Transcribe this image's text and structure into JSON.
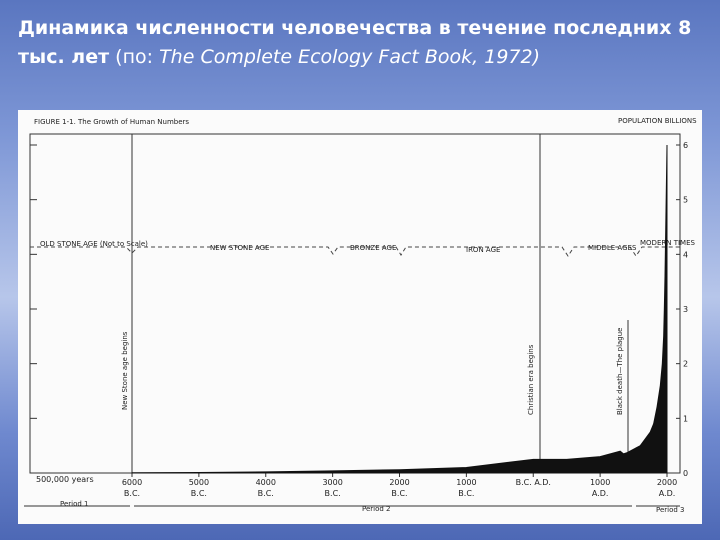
{
  "header": {
    "title": "Динамика численности человечества в течение последних 8 тыс. лет",
    "source_prefix": "(по:",
    "source": "The Complete Ecology Fact Book, 1972)"
  },
  "chart_data": {
    "type": "area",
    "title": "FIGURE 1-1. The Growth of Human Numbers",
    "y_label": "POPULATION BILLIONS",
    "x": [
      -6000,
      -5000,
      -4000,
      -3000,
      -2000,
      -1000,
      0,
      500,
      1000,
      1300,
      1350,
      1400,
      1600,
      1750,
      1800,
      1850,
      1900,
      1930,
      1950,
      1960,
      1970,
      1985,
      2000
    ],
    "series": [
      {
        "name": "Population",
        "color": "#111111",
        "values": [
          0.005,
          0.01,
          0.02,
          0.04,
          0.06,
          0.1,
          0.25,
          0.25,
          0.3,
          0.4,
          0.35,
          0.37,
          0.5,
          0.75,
          0.9,
          1.2,
          1.6,
          2.0,
          2.5,
          3.0,
          3.6,
          4.8,
          6
        ]
      }
    ],
    "xlim": [
      -6000,
      2000
    ],
    "xticks": [
      {
        "value": -6000,
        "label": "6000 B.C."
      },
      {
        "value": -5000,
        "label": "5000 B.C."
      },
      {
        "value": -4000,
        "label": "4000 B.C."
      },
      {
        "value": -3000,
        "label": "3000 B.C."
      },
      {
        "value": -2000,
        "label": "2000 B.C."
      },
      {
        "value": -1000,
        "label": "1000 B.C."
      },
      {
        "value": 0,
        "label": "B.C. A.D."
      },
      {
        "value": 1000,
        "label": "1000 A.D."
      },
      {
        "value": 2000,
        "label": "2000 A.D."
      }
    ],
    "ylim": [
      0,
      6
    ],
    "yticks": [
      0,
      1,
      2,
      3,
      4,
      5,
      6
    ],
    "grid": false,
    "annotations": {
      "old_stone_age": "OLD STONE AGE (Not to Scale)",
      "new_stone_age": "NEW STONE AGE",
      "bronze_age": "BRONZE AGE",
      "iron_age": "IRON AGE",
      "middle_ages": "MIDDLE AGES",
      "modern_times": "MODERN TIMES",
      "new_stone_begins": "New Stone age begins",
      "christian_era": "Christian era begins",
      "black_death": "Black death—The plague",
      "early_span": "500,000 years",
      "period_1": "Period 1",
      "period_2": "Period 2",
      "period_3": "Period 3"
    }
  }
}
